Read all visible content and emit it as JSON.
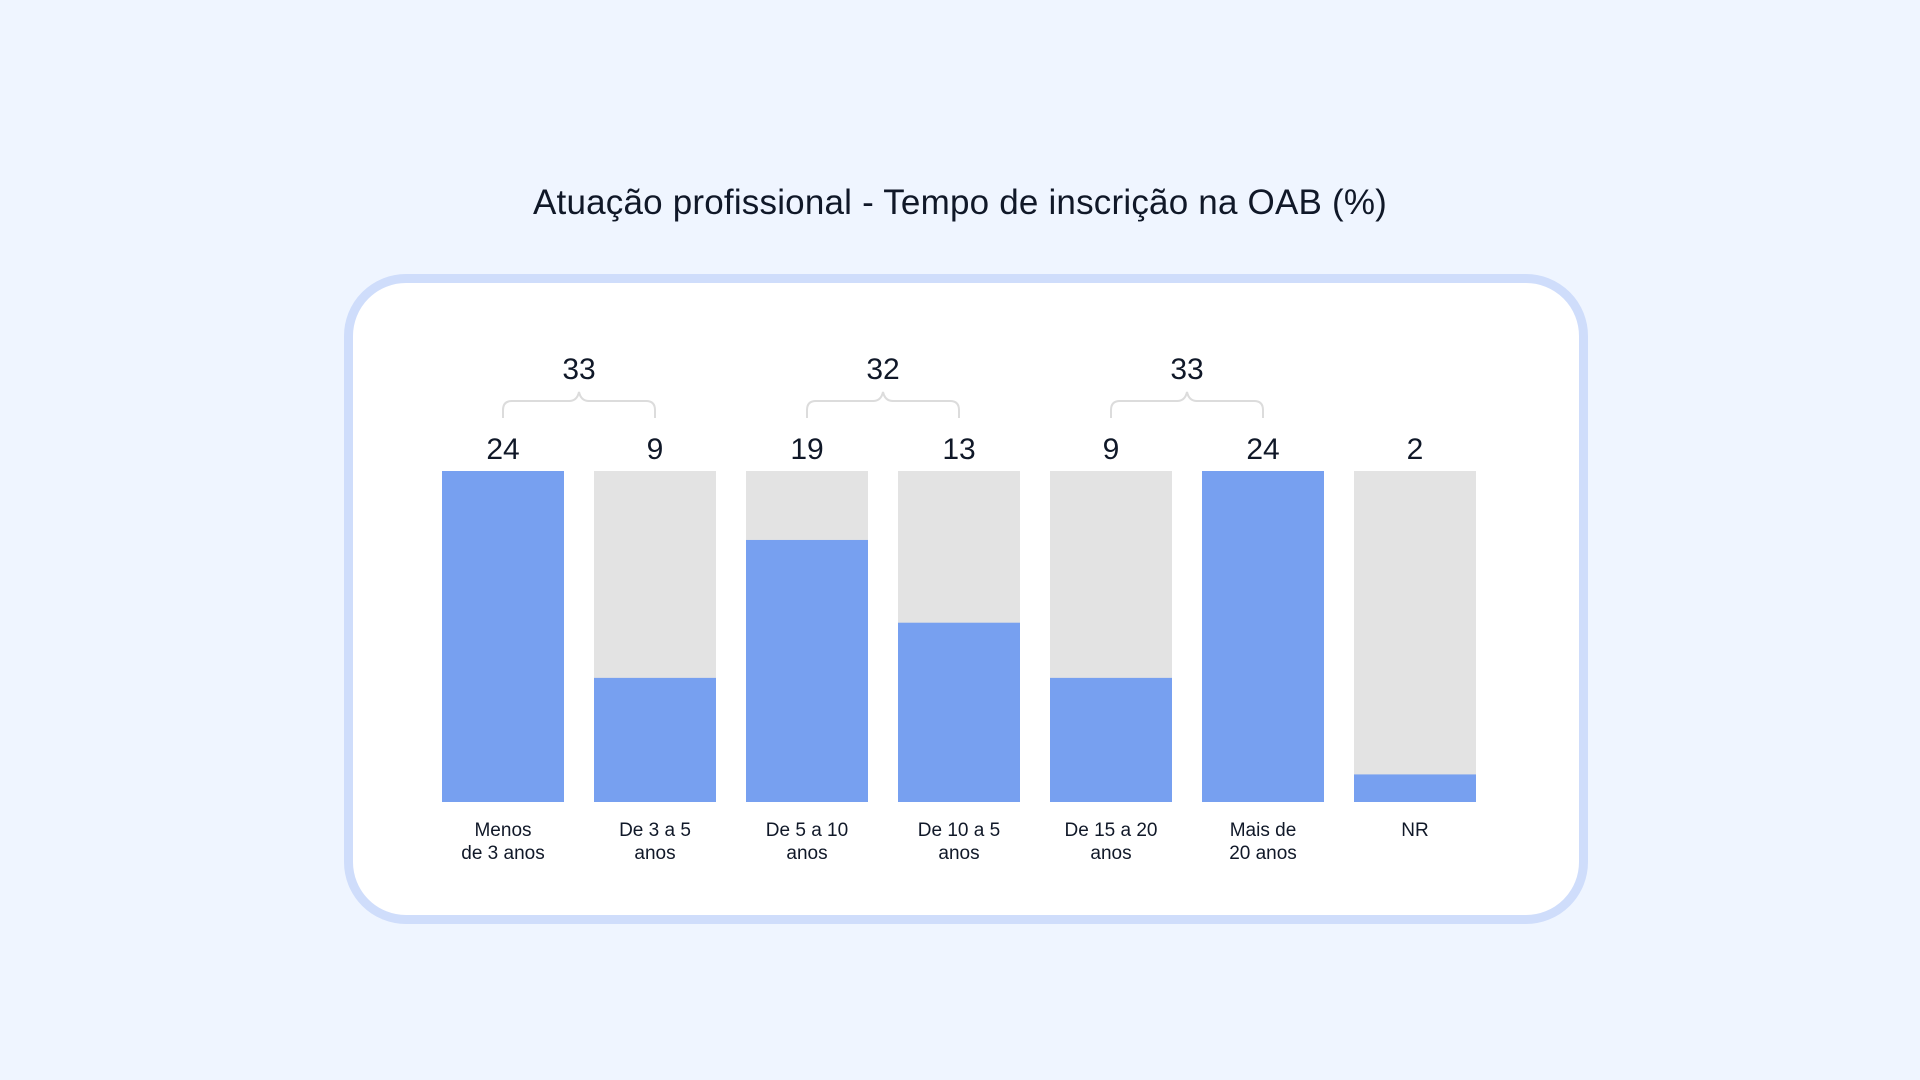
{
  "title": "Atuação profissional - Tempo de inscrição na OAB (%)",
  "colors": {
    "background": "#eff5ff",
    "card_border": "#cfddfb",
    "bar_fill": "#77a0f0",
    "bar_track": "#e3e3e3",
    "brace": "#dcdcdc",
    "text": "#101828"
  },
  "chart_data": {
    "type": "bar",
    "title": "Atuação profissional - Tempo de inscrição na OAB (%)",
    "categories": [
      [
        "Menos",
        "de 3 anos"
      ],
      [
        "De 3 a 5",
        "anos"
      ],
      [
        "De 5 a 10",
        "anos"
      ],
      [
        "De 10 a 5",
        "anos"
      ],
      [
        "De 15 a 20",
        "anos"
      ],
      [
        "Mais de",
        "20 anos"
      ],
      [
        "NR"
      ]
    ],
    "values": [
      24,
      9,
      19,
      13,
      9,
      24,
      2
    ],
    "ylim": [
      0,
      24
    ],
    "grid": false,
    "group_totals": [
      {
        "label": "33",
        "from": 0,
        "to": 1
      },
      {
        "label": "32",
        "from": 2,
        "to": 3
      },
      {
        "label": "33",
        "from": 4,
        "to": 5
      }
    ]
  }
}
